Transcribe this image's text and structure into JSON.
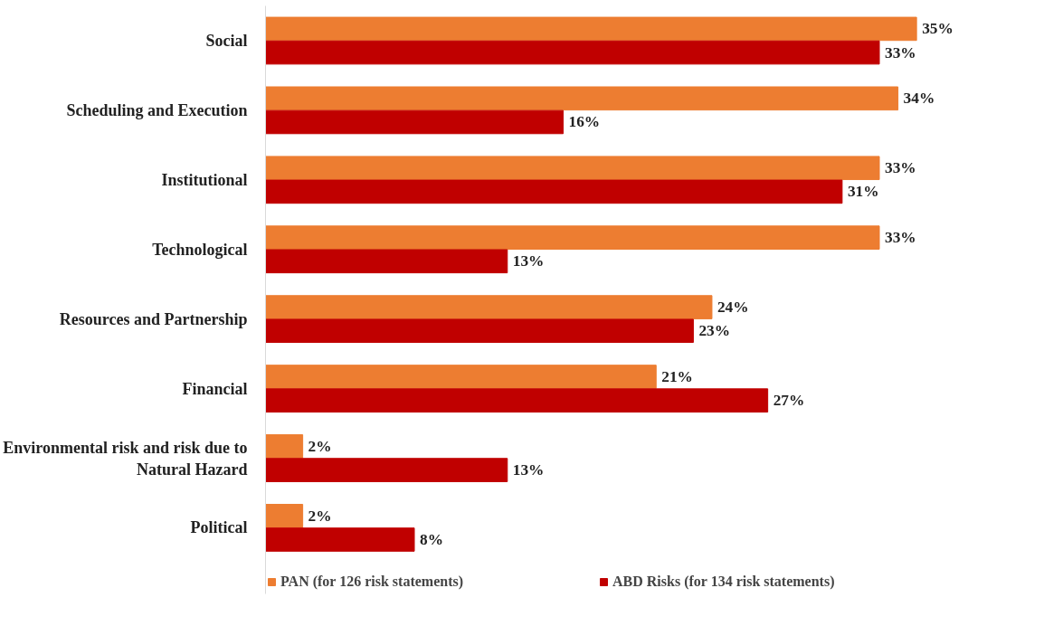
{
  "chart_data": {
    "type": "bar",
    "orientation": "horizontal",
    "categories": [
      "Social",
      "Scheduling and Execution",
      "Institutional",
      "Technological",
      "Resources and Partnership",
      "Financial",
      "Environmental risk and risk due to Natural Hazard",
      "Political"
    ],
    "series": [
      {
        "name": "PAN (for 126 risk statements)",
        "color": "#ed7d31",
        "values": [
          35,
          34,
          33,
          33,
          24,
          21,
          2,
          2
        ],
        "value_labels": [
          "35%",
          "34%",
          "33%",
          "33%",
          "24%",
          "21%",
          "2%",
          "2%"
        ]
      },
      {
        "name": "ABD Risks (for 134 risk statements)",
        "color": "#c00000",
        "values": [
          33,
          16,
          31,
          13,
          23,
          27,
          13,
          8
        ],
        "value_labels": [
          "33%",
          "16%",
          "31%",
          "13%",
          "23%",
          "27%",
          "13%",
          "8%"
        ]
      }
    ],
    "grid": false,
    "legend": "bottom",
    "tick_labels": "y"
  }
}
